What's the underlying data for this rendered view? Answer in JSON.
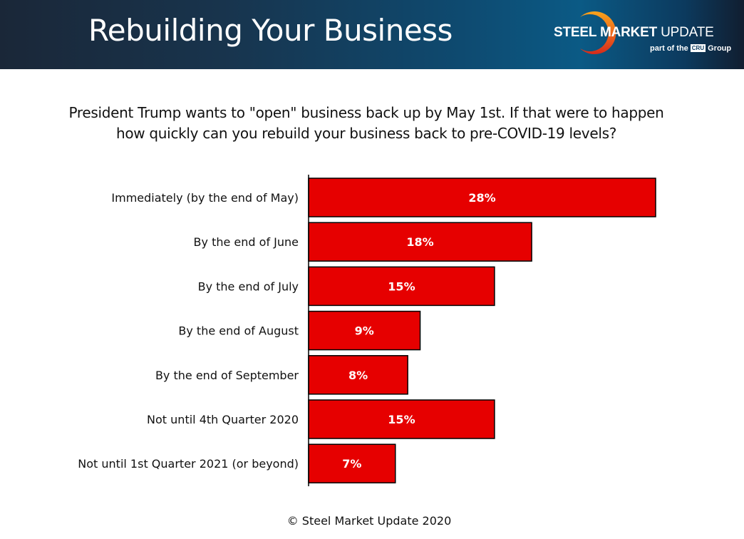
{
  "header": {
    "title": "Rebuilding Your Business",
    "logo": {
      "name_bold": "STEEL MARKET",
      "name_light": "UPDATE",
      "sub_prefix": "part of the",
      "sub_badge": "CRU",
      "sub_suffix": "Group",
      "icon": "crescent-logo-icon"
    }
  },
  "question": {
    "line1": "President Trump wants to \"open\" business back up by May 1st. If that were to happen",
    "line2": "how quickly can you rebuild your business back to pre-COVID-19 levels?"
  },
  "footer": {
    "copyright": "© Steel Market Update 2020"
  },
  "colors": {
    "bar_fill": "#e60000",
    "bar_stroke": "#000000",
    "label_text": "#111111",
    "data_label_text": "#ffffff"
  },
  "chart_data": {
    "type": "bar",
    "orientation": "horizontal",
    "title": "President Trump wants to \"open\" business back up by May 1st. If that were to happen how quickly can you rebuild your business back to pre-COVID-19 levels?",
    "xlabel": "",
    "ylabel": "",
    "xlim": [
      0,
      30
    ],
    "grid": false,
    "legend": "none",
    "categories": [
      "Immediately (by the end of May)",
      "By the end of June",
      "By the end of July",
      "By the end of August",
      "By the end of September",
      "Not until 4th Quarter 2020",
      "Not until 1st Quarter 2021 (or beyond)"
    ],
    "values": [
      28,
      18,
      15,
      9,
      8,
      15,
      7
    ],
    "data_labels": [
      "28%",
      "18%",
      "15%",
      "9%",
      "8%",
      "15%",
      "7%"
    ],
    "unit": "%"
  }
}
